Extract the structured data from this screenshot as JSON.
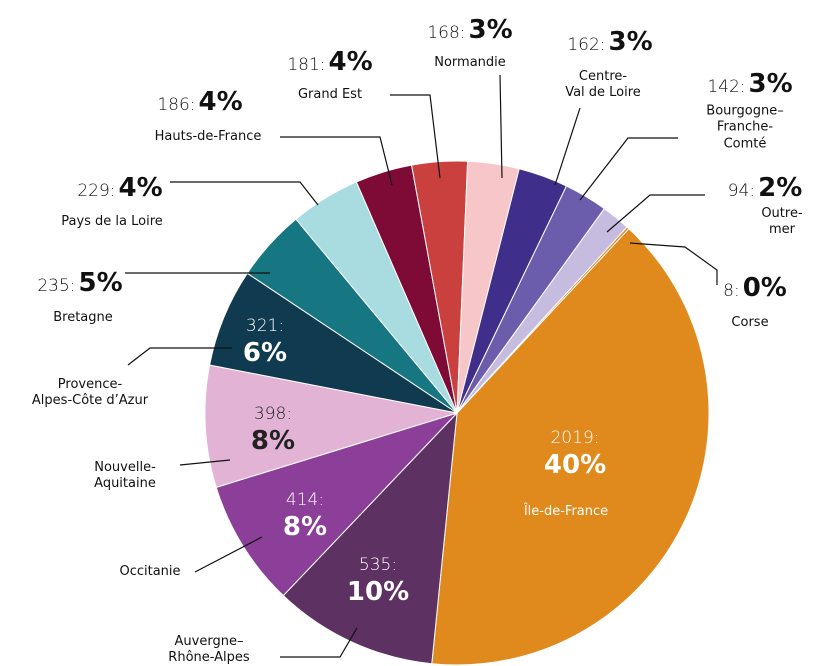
{
  "chart_data": {
    "type": "pie",
    "categories": [
      "Île-de-France",
      "Auvergne–\nRhône-Alpes",
      "Occitanie",
      "Nouvelle-\nAquitaine",
      "Provence-\nAlpes-Côte d’Azur",
      "Bretagne",
      "Pays de la Loire",
      "Hauts-de-France",
      "Grand Est",
      "Normandie",
      "Centre-\nVal de Loire",
      "Bourgogne–\nFranche-Comté",
      "Outre-mer",
      "Corse"
    ],
    "values": [
      2019,
      535,
      414,
      398,
      321,
      235,
      229,
      186,
      181,
      168,
      162,
      142,
      94,
      8
    ],
    "value_labels": [
      "2019:",
      "535:",
      "414:",
      "398:",
      "321:",
      "235:",
      "229:",
      "186:",
      "181:",
      "168:",
      "162:",
      "142:",
      "94:",
      "8:"
    ],
    "percent_labels": [
      "40%",
      "10%",
      "8%",
      "8%",
      "6%",
      "5%",
      "4%",
      "4%",
      "4%",
      "3%",
      "3%",
      "3%",
      "2%",
      "0%"
    ],
    "colors": [
      "#e08a1e",
      "#5e3163",
      "#8b3f98",
      "#e3b3d6",
      "#0f3a4f",
      "#167682",
      "#a8dce0",
      "#7e0b35",
      "#c9403e",
      "#f6c6c8",
      "#3f2f8b",
      "#6b5dab",
      "#c5bce0",
      "#e08a1e"
    ]
  }
}
